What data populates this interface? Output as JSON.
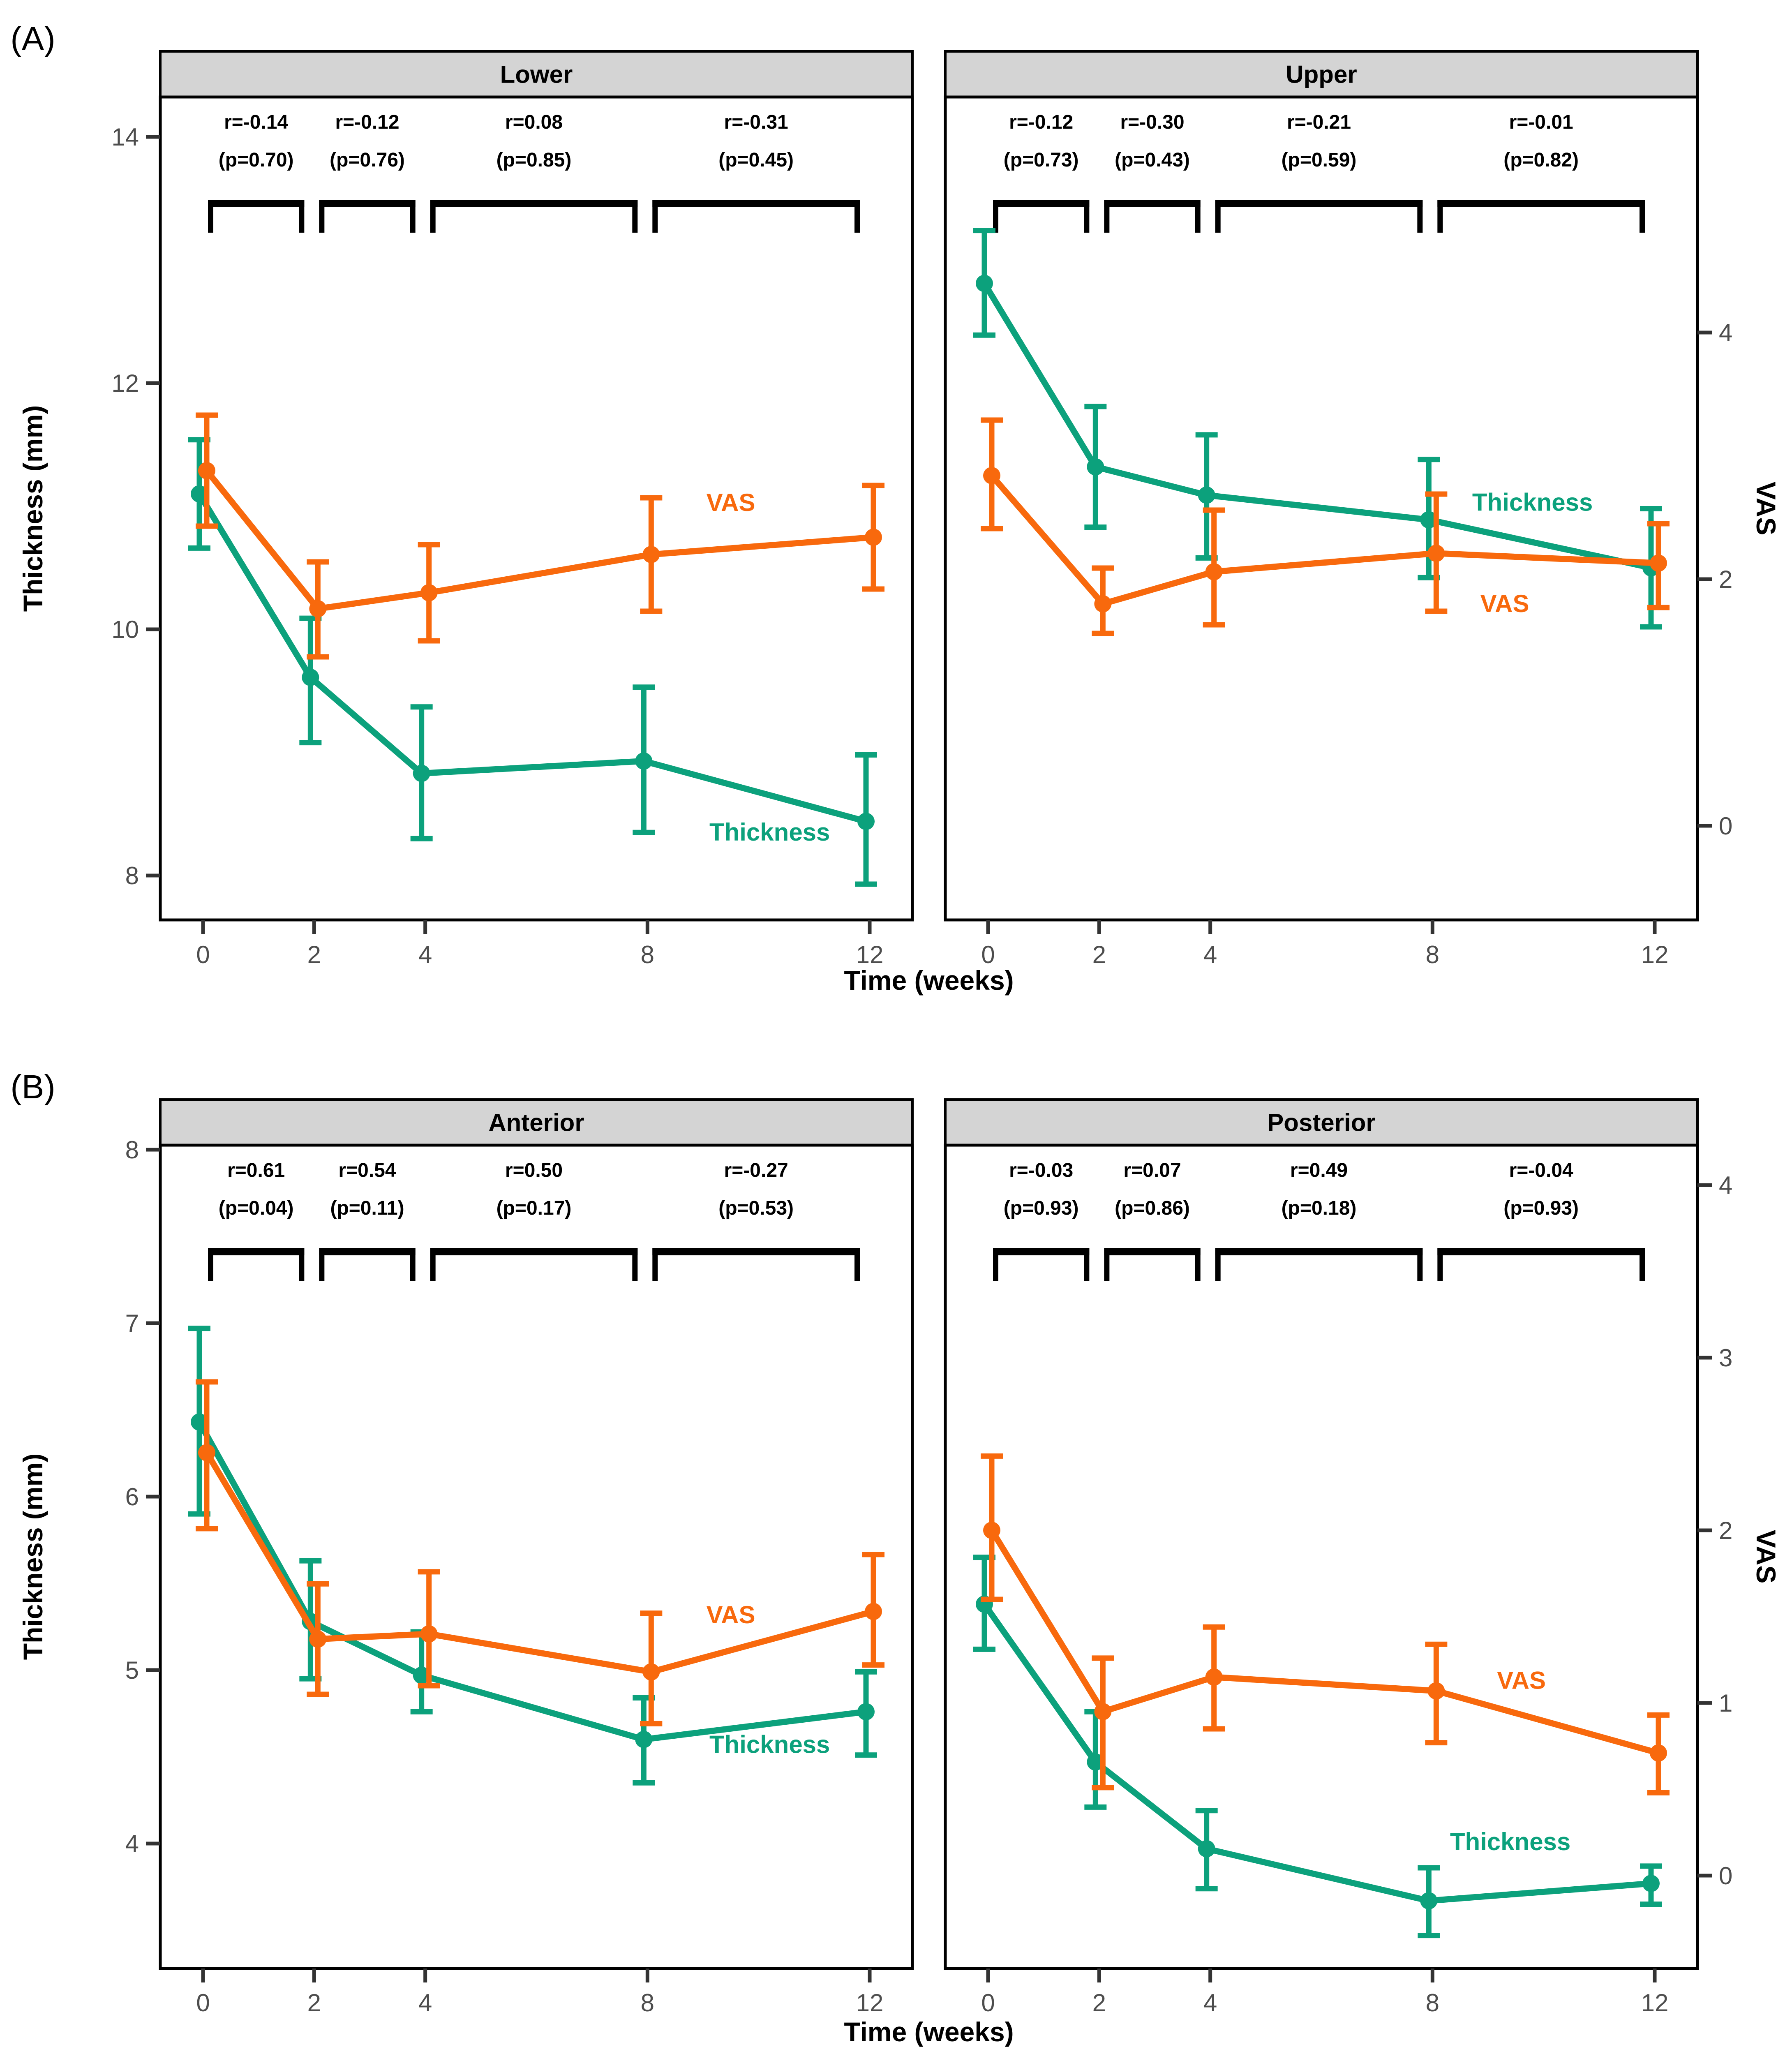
{
  "labels": {
    "panel_a": "(A)",
    "panel_b": "(B)"
  },
  "axis_titles": {
    "x_a": "Time (weeks)",
    "x_b": "Time (weeks)",
    "left_a": "Thickness (mm)",
    "left_b": "Thickness (mm)",
    "right_a": "VAS",
    "right_b": "VAS"
  },
  "series_labels": {
    "thickness": "Thickness",
    "vas": "VAS"
  },
  "colors": {
    "thickness": "#0CA17C",
    "vas": "#F8690D",
    "strip_bg": "#D4D4D4",
    "tick_label": "#4D4D4D",
    "tick_mark": "#333333",
    "panel_border": "#000000",
    "annotation": "#000000"
  },
  "chart_data": {
    "type": "line",
    "x": [
      0,
      2,
      4,
      8,
      12
    ],
    "xlabel": "Time (weeks)",
    "x_ticks": [
      0,
      2,
      4,
      8,
      12
    ],
    "legend_position": "inline-text-labels",
    "grid": false,
    "panels": [
      {
        "panel_label": "(A)",
        "left_axis": {
          "label": "Thickness (mm)",
          "ticks": [
            8,
            10,
            12,
            14
          ],
          "range_shown": [
            7.6,
            14.3
          ]
        },
        "right_axis": {
          "label": "VAS",
          "ticks": [
            0,
            2,
            4
          ],
          "range_shown": [
            -0.76,
            5.91
          ]
        },
        "facets": [
          {
            "title": "Lower",
            "correlations": [
              {
                "r": "r=-0.14",
                "p": "(p=0.70)"
              },
              {
                "r": "r=-0.12",
                "p": "(p=0.76)"
              },
              {
                "r": "r=0.08",
                "p": "(p=0.85)"
              },
              {
                "r": "r=-0.31",
                "p": "(p=0.45)"
              }
            ],
            "thickness": {
              "mean": [
                11.1,
                9.61,
                8.83,
                8.93,
                8.44
              ],
              "lo": [
                10.66,
                9.08,
                8.3,
                8.35,
                7.93
              ],
              "hi": [
                11.54,
                10.09,
                9.37,
                9.53,
                8.98
              ],
              "label_pos": {
                "week": 10.2,
                "value": 8.35
              }
            },
            "vas": {
              "mean": [
                2.88,
                1.76,
                1.89,
                2.2,
                2.34
              ],
              "lo": [
                2.43,
                1.37,
                1.5,
                1.74,
                1.92
              ],
              "hi": [
                3.33,
                2.14,
                2.28,
                2.66,
                2.76
              ],
              "label_pos": {
                "week": 9.5,
                "value": 2.62
              }
            }
          },
          {
            "title": "Upper",
            "correlations": [
              {
                "r": "r=-0.12",
                "p": "(p=0.73)"
              },
              {
                "r": "r=-0.30",
                "p": "(p=0.43)"
              },
              {
                "r": "r=-0.21",
                "p": "(p=0.59)"
              },
              {
                "r": "r=-0.01",
                "p": "(p=0.82)"
              }
            ],
            "thickness": {
              "mean": [
                12.81,
                11.32,
                11.09,
                10.89,
                10.5
              ],
              "lo": [
                12.39,
                10.83,
                10.58,
                10.42,
                10.02
              ],
              "hi": [
                13.24,
                11.81,
                11.58,
                11.38,
                10.98
              ],
              "label_pos": {
                "week": 9.8,
                "value": 11.03
              }
            },
            "vas": {
              "mean": [
                2.84,
                1.8,
                2.06,
                2.21,
                2.13
              ],
              "lo": [
                2.41,
                1.56,
                1.63,
                1.74,
                1.77
              ],
              "hi": [
                3.29,
                2.09,
                2.56,
                2.69,
                2.45
              ],
              "label_pos": {
                "week": 9.3,
                "value": 1.8
              }
            }
          }
        ]
      },
      {
        "panel_label": "(B)",
        "left_axis": {
          "label": "Thickness (mm)",
          "ticks": [
            4,
            5,
            6,
            7,
            8
          ],
          "range_shown": [
            3.29,
            8.03
          ]
        },
        "right_axis": {
          "label": "VAS",
          "ticks": [
            0,
            1,
            2,
            3,
            4
          ],
          "range_shown": [
            -0.54,
            4.23
          ]
        },
        "facets": [
          {
            "title": "Anterior",
            "correlations": [
              {
                "r": "r=0.61",
                "p": "(p=0.04)"
              },
              {
                "r": "r=0.54",
                "p": "(p=0.11)"
              },
              {
                "r": "r=0.50",
                "p": "(p=0.17)"
              },
              {
                "r": "r=-0.27",
                "p": "(p=0.53)"
              }
            ],
            "thickness": {
              "mean": [
                6.43,
                5.28,
                4.97,
                4.6,
                4.76
              ],
              "lo": [
                5.9,
                4.95,
                4.76,
                4.35,
                4.51
              ],
              "hi": [
                6.97,
                5.63,
                5.22,
                4.84,
                4.99
              ],
              "label_pos": {
                "week": 10.2,
                "value": 4.57
              }
            },
            "vas": {
              "mean": [
                2.45,
                1.37,
                1.4,
                1.18,
                1.53
              ],
              "lo": [
                2.01,
                1.05,
                1.1,
                0.88,
                1.22
              ],
              "hi": [
                2.86,
                1.69,
                1.76,
                1.52,
                1.86
              ],
              "label_pos": {
                "week": 9.5,
                "value": 1.51
              }
            }
          },
          {
            "title": "Posterior",
            "correlations": [
              {
                "r": "r=-0.03",
                "p": "(p=0.93)"
              },
              {
                "r": "r=0.07",
                "p": "(p=0.86)"
              },
              {
                "r": "r=0.49",
                "p": "(p=0.18)"
              },
              {
                "r": "r=-0.04",
                "p": "(p=0.93)"
              }
            ],
            "thickness": {
              "mean": [
                5.38,
                4.47,
                3.97,
                3.67,
                3.77
              ],
              "lo": [
                5.12,
                4.21,
                3.74,
                3.47,
                3.65
              ],
              "hi": [
                5.65,
                4.76,
                4.19,
                3.86,
                3.87
              ],
              "label_pos": {
                "week": 9.4,
                "value": 4.01
              }
            },
            "vas": {
              "mean": [
                2.0,
                0.95,
                1.15,
                1.07,
                0.71
              ],
              "lo": [
                1.6,
                0.51,
                0.85,
                0.77,
                0.48
              ],
              "hi": [
                2.43,
                1.26,
                1.44,
                1.34,
                0.93
              ],
              "label_pos": {
                "week": 9.6,
                "value": 1.13
              }
            }
          }
        ]
      }
    ]
  }
}
